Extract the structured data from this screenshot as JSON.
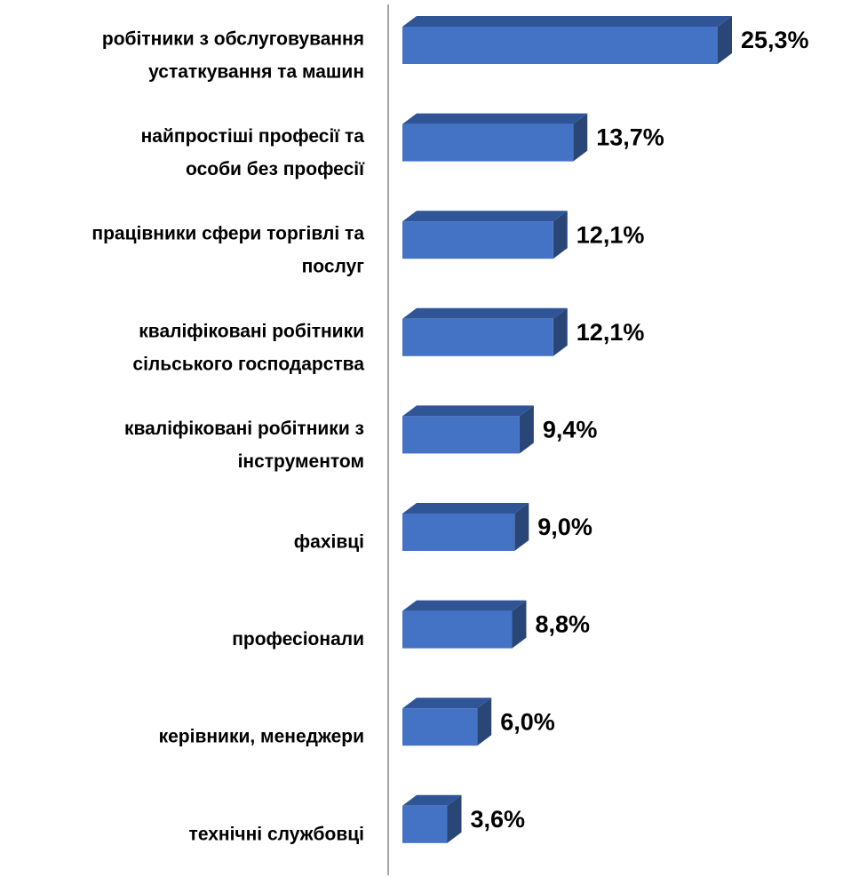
{
  "chart_data": {
    "type": "bar3d",
    "categories": [
      [
        "робітники з обслуговування",
        "устаткування та машин"
      ],
      [
        "найпростіші професії та",
        "особи без професії"
      ],
      [
        "працівники сфери торгівлі та",
        "послуг"
      ],
      [
        "кваліфіковані робітники",
        "сільського господарства"
      ],
      [
        "кваліфіковані робітники з",
        "інструментом"
      ],
      [
        "фахівці"
      ],
      [
        "професіонали"
      ],
      [
        "керівники, менеджери"
      ],
      [
        "технічні службовці"
      ]
    ],
    "values": [
      25.3,
      13.7,
      12.1,
      12.1,
      9.4,
      9.0,
      8.8,
      6.0,
      3.6
    ],
    "value_labels": [
      "25,3%",
      "13,7%",
      "12,1%",
      "12,1%",
      "9,4%",
      "9,0%",
      "8,8%",
      "6,0%",
      "3,6%"
    ],
    "color": "#4472c4"
  }
}
